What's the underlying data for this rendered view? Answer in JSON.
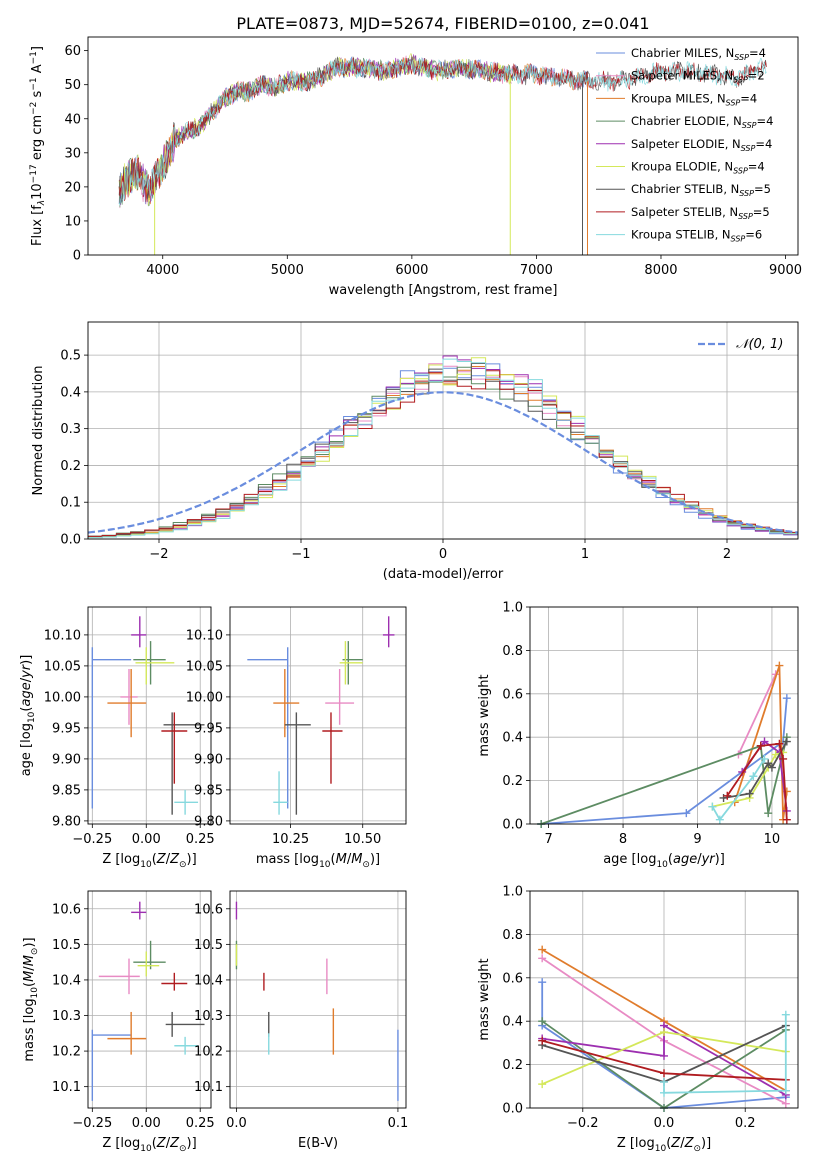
{
  "title": "PLATE=0873, MJD=52674, FIBERID=0100, z=0.041",
  "colors": {
    "c_miles": "#6a8dde",
    "s_miles": "#e88bc4",
    "k_miles": "#e07c2c",
    "c_elodie": "#5d8c63",
    "s_elodie": "#9d2fb0",
    "k_elodie": "#d4e85a",
    "c_stelib": "#555555",
    "s_stelib": "#b01c20",
    "k_stelib": "#86d9de"
  },
  "chart_data": [
    {
      "id": "spectrum",
      "type": "line",
      "xlabel": "wavelength [Angstrom, rest frame]",
      "ylabel_parts": [
        "Flux [f",
        "λ",
        "10",
        "−17",
        " erg cm",
        "−2",
        " s",
        "−1",
        " A",
        "−1",
        "]"
      ],
      "xlim": [
        3400,
        9100
      ],
      "ylim": [
        0,
        64
      ],
      "xticks": [
        4000,
        5000,
        6000,
        7000,
        8000,
        9000
      ],
      "yticks": [
        0,
        10,
        20,
        30,
        40,
        50,
        60
      ],
      "legend": [
        {
          "key": "c_miles",
          "base": "Chabrier MILES, N",
          "sub": "SSP",
          "tail": "=4"
        },
        {
          "key": "s_miles",
          "base": "Salpeter MILES, N",
          "sub": "SSP",
          "tail": "=2"
        },
        {
          "key": "k_miles",
          "base": "Kroupa MILES, N",
          "sub": "SSP",
          "tail": "=4"
        },
        {
          "key": "c_elodie",
          "base": "Chabrier ELODIE, N",
          "sub": "SSP",
          "tail": "=4"
        },
        {
          "key": "s_elodie",
          "base": "Salpeter ELODIE, N",
          "sub": "SSP",
          "tail": "=4"
        },
        {
          "key": "k_elodie",
          "base": "Kroupa ELODIE, N",
          "sub": "SSP",
          "tail": "=4"
        },
        {
          "key": "c_stelib",
          "base": "Chabrier STELIB, N",
          "sub": "SSP",
          "tail": "=5"
        },
        {
          "key": "s_stelib",
          "base": "Salpeter STELIB, N",
          "sub": "SSP",
          "tail": "=5"
        },
        {
          "key": "k_stelib",
          "base": "Kroupa STELIB, N",
          "sub": "SSP",
          "tail": "=6"
        }
      ],
      "continuum": [
        [
          3650,
          18
        ],
        [
          3700,
          22
        ],
        [
          3800,
          24
        ],
        [
          3900,
          18
        ],
        [
          3950,
          24
        ],
        [
          4000,
          26
        ],
        [
          4100,
          34
        ],
        [
          4200,
          36
        ],
        [
          4300,
          38
        ],
        [
          4400,
          42
        ],
        [
          4500,
          46
        ],
        [
          4600,
          48
        ],
        [
          4700,
          48
        ],
        [
          4800,
          50
        ],
        [
          4900,
          49
        ],
        [
          5000,
          51
        ],
        [
          5100,
          51
        ],
        [
          5200,
          51
        ],
        [
          5300,
          53
        ],
        [
          5400,
          55
        ],
        [
          5600,
          55
        ],
        [
          5800,
          54
        ],
        [
          6000,
          56
        ],
        [
          6200,
          54
        ],
        [
          6400,
          55
        ],
        [
          6600,
          54
        ],
        [
          6800,
          53
        ],
        [
          7000,
          53
        ],
        [
          7200,
          52
        ],
        [
          7400,
          51
        ],
        [
          7600,
          51
        ],
        [
          7800,
          52
        ],
        [
          8000,
          54
        ],
        [
          8200,
          54
        ],
        [
          8400,
          53
        ],
        [
          8600,
          52
        ],
        [
          8800,
          55
        ]
      ],
      "drops": [
        {
          "x": 3935,
          "y": 0
        },
        {
          "x": 6790,
          "y": 0
        },
        {
          "x": 7370,
          "y": 0
        },
        {
          "x": 7410,
          "y": 0
        }
      ]
    },
    {
      "id": "residuals",
      "type": "histogram",
      "xlabel": "(data-model)/error",
      "ylabel": "Normed distribution",
      "xlim": [
        -2.5,
        2.5
      ],
      "ylim": [
        0,
        0.59
      ],
      "xticks": [
        -2,
        -1,
        0,
        1,
        2
      ],
      "yticks": [
        0.0,
        0.1,
        0.2,
        0.3,
        0.4,
        0.5
      ],
      "legend_label": "N(0,1)",
      "bin_width": 0.1
    },
    {
      "id": "age_vs_Z",
      "type": "scatter",
      "xlabel": "Z [log10(Z/Z⊙)]",
      "ylabel": "age [log10(age/yr)]",
      "xlim": [
        -0.27,
        0.3
      ],
      "ylim": [
        9.795,
        10.145
      ],
      "xticks": [
        -0.25,
        0.0,
        0.25
      ],
      "yticks": [
        9.8,
        9.85,
        9.9,
        9.95,
        10.0,
        10.05,
        10.1
      ],
      "points": [
        {
          "key": "c_miles",
          "x": -0.25,
          "y": 10.06,
          "xe": [
            -0.25,
            -0.07
          ],
          "ye": [
            9.82,
            10.08
          ]
        },
        {
          "key": "s_miles",
          "x": -0.08,
          "y": 10.0,
          "xe": [
            -0.12,
            -0.04
          ],
          "ye": [
            9.955,
            10.045
          ]
        },
        {
          "key": "k_miles",
          "x": -0.07,
          "y": 9.99,
          "xe": [
            -0.18,
            0.0
          ],
          "ye": [
            9.935,
            10.045
          ]
        },
        {
          "key": "c_elodie",
          "x": 0.02,
          "y": 10.06,
          "xe": [
            -0.06,
            0.09
          ],
          "ye": [
            10.02,
            10.09
          ]
        },
        {
          "key": "s_elodie",
          "x": -0.03,
          "y": 10.1,
          "xe": [
            -0.07,
            0.0
          ],
          "ye": [
            10.08,
            10.13
          ]
        },
        {
          "key": "k_elodie",
          "x": 0.0,
          "y": 10.055,
          "xe": [
            -0.05,
            0.13
          ],
          "ye": [
            10.02,
            10.08
          ]
        },
        {
          "key": "c_stelib",
          "x": 0.12,
          "y": 9.955,
          "xe": [
            0.08,
            0.27
          ],
          "ye": [
            9.81,
            9.975
          ]
        },
        {
          "key": "s_stelib",
          "x": 0.13,
          "y": 9.945,
          "xe": [
            0.07,
            0.19
          ],
          "ye": [
            9.86,
            9.975
          ]
        },
        {
          "key": "k_stelib",
          "x": 0.18,
          "y": 9.83,
          "xe": [
            0.13,
            0.24
          ],
          "ye": [
            9.81,
            9.85
          ]
        }
      ]
    },
    {
      "id": "age_vs_mass",
      "type": "scatter",
      "xlabel": "mass [log10(M/M⊙)]",
      "ylabel": "",
      "xlim": [
        10.04,
        10.65
      ],
      "ylim": [
        9.795,
        10.145
      ],
      "xticks": [
        10.25,
        10.5
      ],
      "yticks": [
        9.8,
        9.85,
        9.9,
        9.95,
        10.0,
        10.05,
        10.1
      ],
      "points": [
        {
          "key": "c_miles",
          "x": 10.24,
          "y": 10.06,
          "xe": [
            10.1,
            10.24
          ],
          "ye": [
            9.82,
            10.08
          ]
        },
        {
          "key": "s_miles",
          "x": 10.42,
          "y": 9.99,
          "xe": [
            10.37,
            10.47
          ],
          "ye": [
            9.955,
            10.045
          ]
        },
        {
          "key": "k_miles",
          "x": 10.23,
          "y": 9.99,
          "xe": [
            10.19,
            10.28
          ],
          "ye": [
            9.935,
            10.045
          ]
        },
        {
          "key": "c_elodie",
          "x": 10.45,
          "y": 10.06,
          "xe": [
            10.43,
            10.5
          ],
          "ye": [
            10.02,
            10.09
          ]
        },
        {
          "key": "s_elodie",
          "x": 10.59,
          "y": 10.1,
          "xe": [
            10.57,
            10.61
          ],
          "ye": [
            10.08,
            10.13
          ]
        },
        {
          "key": "k_elodie",
          "x": 10.44,
          "y": 10.055,
          "xe": [
            10.42,
            10.5
          ],
          "ye": [
            10.02,
            10.09
          ]
        },
        {
          "key": "c_stelib",
          "x": 10.27,
          "y": 9.955,
          "xe": [
            10.23,
            10.32
          ],
          "ye": [
            9.81,
            9.975
          ]
        },
        {
          "key": "s_stelib",
          "x": 10.39,
          "y": 9.945,
          "xe": [
            10.36,
            10.43
          ],
          "ye": [
            9.86,
            9.975
          ]
        },
        {
          "key": "k_stelib",
          "x": 10.21,
          "y": 9.83,
          "xe": [
            10.19,
            10.24
          ],
          "ye": [
            9.81,
            9.88
          ]
        }
      ]
    },
    {
      "id": "weight_vs_age",
      "type": "line",
      "xlabel": "age [log10(age/yr)]",
      "ylabel": "mass weight",
      "xlim": [
        6.75,
        10.35
      ],
      "ylim": [
        0,
        1.0
      ],
      "xticks": [
        7,
        8,
        9,
        10
      ],
      "yticks": [
        0.0,
        0.2,
        0.4,
        0.6,
        0.8,
        1.0
      ],
      "series": [
        {
          "key": "c_miles",
          "x": [
            6.9,
            8.85,
            10.15,
            10.2
          ],
          "y": [
            0.0,
            0.05,
            0.38,
            0.58
          ]
        },
        {
          "key": "s_miles",
          "x": [
            9.55,
            10.05
          ],
          "y": [
            0.32,
            0.69
          ]
        },
        {
          "key": "k_miles",
          "x": [
            9.5,
            10.1,
            10.15,
            10.2
          ],
          "y": [
            0.1,
            0.73,
            0.02,
            0.15
          ]
        },
        {
          "key": "c_elodie",
          "x": [
            6.9,
            9.85,
            9.95,
            10.2
          ],
          "y": [
            0.0,
            0.36,
            0.05,
            0.4
          ]
        },
        {
          "key": "s_elodie",
          "x": [
            9.6,
            9.9,
            10.1,
            10.2
          ],
          "y": [
            0.24,
            0.38,
            0.33,
            0.06
          ]
        },
        {
          "key": "k_elodie",
          "x": [
            9.2,
            9.7,
            9.95,
            10.05,
            10.15
          ],
          "y": [
            0.08,
            0.12,
            0.26,
            0.32,
            0.33
          ]
        },
        {
          "key": "c_stelib",
          "x": [
            9.35,
            9.7,
            9.95,
            10.0,
            10.2
          ],
          "y": [
            0.12,
            0.14,
            0.28,
            0.26,
            0.38
          ]
        },
        {
          "key": "s_stelib",
          "x": [
            9.4,
            9.85,
            10.1,
            10.15,
            10.2
          ],
          "y": [
            0.13,
            0.36,
            0.37,
            0.3,
            0.02
          ]
        },
        {
          "key": "k_stelib",
          "x": [
            9.2,
            9.3,
            9.75,
            9.9
          ],
          "y": [
            0.08,
            0.02,
            0.22,
            0.3
          ]
        }
      ]
    },
    {
      "id": "mass_vs_Z",
      "type": "scatter",
      "xlabel": "Z [log10(Z/Z⊙)]",
      "ylabel": "mass [log10(M/M⊙)]",
      "xlim": [
        -0.27,
        0.3
      ],
      "ylim": [
        10.04,
        10.65
      ],
      "xticks": [
        -0.25,
        0.0,
        0.25
      ],
      "yticks": [
        10.1,
        10.2,
        10.3,
        10.4,
        10.5,
        10.6
      ],
      "points": [
        {
          "key": "c_miles",
          "x": -0.25,
          "y": 10.245,
          "xe": [
            -0.25,
            -0.07
          ],
          "ye": [
            10.06,
            10.26
          ]
        },
        {
          "key": "s_miles",
          "x": -0.08,
          "y": 10.41,
          "xe": [
            -0.22,
            -0.03
          ],
          "ye": [
            10.36,
            10.46
          ]
        },
        {
          "key": "k_miles",
          "x": -0.07,
          "y": 10.235,
          "xe": [
            -0.18,
            0.0
          ],
          "ye": [
            10.19,
            10.31
          ]
        },
        {
          "key": "c_elodie",
          "x": 0.02,
          "y": 10.45,
          "xe": [
            -0.06,
            0.09
          ],
          "ye": [
            10.43,
            10.51
          ]
        },
        {
          "key": "s_elodie",
          "x": -0.03,
          "y": 10.59,
          "xe": [
            -0.07,
            0.0
          ],
          "ye": [
            10.57,
            10.62
          ]
        },
        {
          "key": "k_elodie",
          "x": 0.0,
          "y": 10.44,
          "xe": [
            -0.04,
            0.06
          ],
          "ye": [
            10.41,
            10.48
          ]
        },
        {
          "key": "c_stelib",
          "x": 0.12,
          "y": 10.275,
          "xe": [
            0.09,
            0.27
          ],
          "ye": [
            10.24,
            10.31
          ]
        },
        {
          "key": "s_stelib",
          "x": 0.13,
          "y": 10.39,
          "xe": [
            0.07,
            0.19
          ],
          "ye": [
            10.37,
            10.42
          ]
        },
        {
          "key": "k_stelib",
          "x": 0.18,
          "y": 10.215,
          "xe": [
            0.13,
            0.24
          ],
          "ye": [
            10.19,
            10.24
          ]
        }
      ]
    },
    {
      "id": "mass_vs_EBV",
      "type": "scatter",
      "xlabel": "E(B-V)",
      "ylabel": "",
      "xlim": [
        -0.004,
        0.105
      ],
      "ylim": [
        10.04,
        10.65
      ],
      "xticks": [
        0.0,
        0.1
      ],
      "yticks": [
        10.1,
        10.2,
        10.3,
        10.4,
        10.5,
        10.6
      ],
      "points": [
        {
          "key": "c_miles",
          "x": 0.1,
          "y": 10.16,
          "xe": [
            0.1,
            0.1
          ],
          "ye": [
            10.06,
            10.26
          ]
        },
        {
          "key": "s_miles",
          "x": 0.056,
          "y": 10.41,
          "xe": [
            0.056,
            0.056
          ],
          "ye": [
            10.36,
            10.46
          ]
        },
        {
          "key": "k_miles",
          "x": 0.06,
          "y": 10.255,
          "xe": [
            0.06,
            0.06
          ],
          "ye": [
            10.19,
            10.32
          ]
        },
        {
          "key": "c_elodie",
          "x": 0.0,
          "y": 10.45,
          "xe": [
            0.0,
            0.0
          ],
          "ye": [
            10.43,
            10.51
          ]
        },
        {
          "key": "s_elodie",
          "x": 0.0,
          "y": 10.59,
          "xe": [
            0.0,
            0.0
          ],
          "ye": [
            10.57,
            10.62
          ]
        },
        {
          "key": "k_elodie",
          "x": 0.0,
          "y": 10.47,
          "xe": [
            0.0,
            0.0
          ],
          "ye": [
            10.44,
            10.5
          ]
        },
        {
          "key": "c_stelib",
          "x": 0.02,
          "y": 10.275,
          "xe": [
            0.02,
            0.02
          ],
          "ye": [
            10.24,
            10.31
          ]
        },
        {
          "key": "s_stelib",
          "x": 0.017,
          "y": 10.39,
          "xe": [
            0.017,
            0.017
          ],
          "ye": [
            10.37,
            10.42
          ]
        },
        {
          "key": "k_stelib",
          "x": 0.02,
          "y": 10.22,
          "xe": [
            0.02,
            0.02
          ],
          "ye": [
            10.19,
            10.25
          ]
        }
      ]
    },
    {
      "id": "weight_vs_Z",
      "type": "line",
      "xlabel": "Z [log10(Z/Z⊙)]",
      "ylabel": "mass weight",
      "xlim": [
        -0.33,
        0.33
      ],
      "ylim": [
        0,
        1.0
      ],
      "xticks": [
        -0.2,
        0.0,
        0.2
      ],
      "yticks": [
        0.0,
        0.2,
        0.4,
        0.6,
        0.8,
        1.0
      ],
      "series": [
        {
          "key": "c_miles",
          "x": [
            -0.3,
            -0.3,
            0.0,
            0.3
          ],
          "y": [
            0.58,
            0.38,
            0.0,
            0.05
          ]
        },
        {
          "key": "s_miles",
          "x": [
            -0.3,
            0.0,
            0.3
          ],
          "y": [
            0.69,
            0.31,
            0.02
          ]
        },
        {
          "key": "k_miles",
          "x": [
            -0.3,
            0.0,
            0.3
          ],
          "y": [
            0.73,
            0.4,
            0.08
          ]
        },
        {
          "key": "c_elodie",
          "x": [
            -0.3,
            0.0,
            0.3
          ],
          "y": [
            0.4,
            0.0,
            0.36
          ]
        },
        {
          "key": "s_elodie",
          "x": [
            -0.3,
            0.0,
            0.0,
            0.3
          ],
          "y": [
            0.32,
            0.24,
            0.38,
            0.06
          ]
        },
        {
          "key": "k_elodie",
          "x": [
            -0.3,
            0.0,
            0.3
          ],
          "y": [
            0.11,
            0.35,
            0.26
          ]
        },
        {
          "key": "c_stelib",
          "x": [
            -0.3,
            0.0,
            0.3
          ],
          "y": [
            0.29,
            0.12,
            0.38
          ]
        },
        {
          "key": "s_stelib",
          "x": [
            -0.3,
            0.0,
            0.3
          ],
          "y": [
            0.31,
            0.16,
            0.13
          ]
        },
        {
          "key": "k_stelib",
          "x": [
            0.0,
            0.0,
            0.3,
            0.3
          ],
          "y": [
            0.12,
            0.07,
            0.08,
            0.43
          ]
        }
      ]
    }
  ]
}
